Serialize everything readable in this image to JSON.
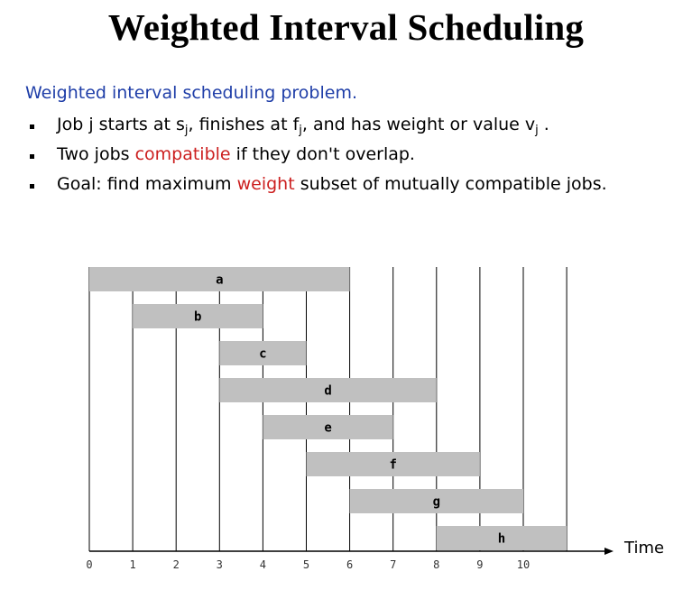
{
  "title": "Weighted Interval Scheduling",
  "intro": "Weighted interval scheduling problem.",
  "bullets": {
    "b1": {
      "p1": "Job j starts at s",
      "s1": "j",
      "p2": ", finishes at f",
      "s2": "j",
      "p3": ", and has weight or value v",
      "s3": "j",
      "p4": " ."
    },
    "b2": {
      "p1": "Two jobs ",
      "hl": "compatible",
      "p2": " if they don't overlap."
    },
    "b3": {
      "p1": "Goal:  find maximum ",
      "hl": "weight",
      "p2": " subset of mutually compatible jobs."
    }
  },
  "colors": {
    "accent_blue": "#1f3ea8",
    "highlight_red": "#cc1f1f",
    "bar_fill": "#c0c0c0"
  },
  "chart_data": {
    "type": "gantt",
    "axis_label": "Time",
    "ticks": [
      "0",
      "1",
      "2",
      "3",
      "4",
      "5",
      "6",
      "7",
      "8",
      "9",
      "10"
    ],
    "jobs": [
      {
        "name": "a",
        "start": 0,
        "end": 6
      },
      {
        "name": "b",
        "start": 1,
        "end": 4
      },
      {
        "name": "c",
        "start": 3,
        "end": 5
      },
      {
        "name": "d",
        "start": 3,
        "end": 8
      },
      {
        "name": "e",
        "start": 4,
        "end": 7
      },
      {
        "name": "f",
        "start": 5,
        "end": 9
      },
      {
        "name": "g",
        "start": 6,
        "end": 10
      },
      {
        "name": "h",
        "start": 8,
        "end": 11
      }
    ]
  }
}
